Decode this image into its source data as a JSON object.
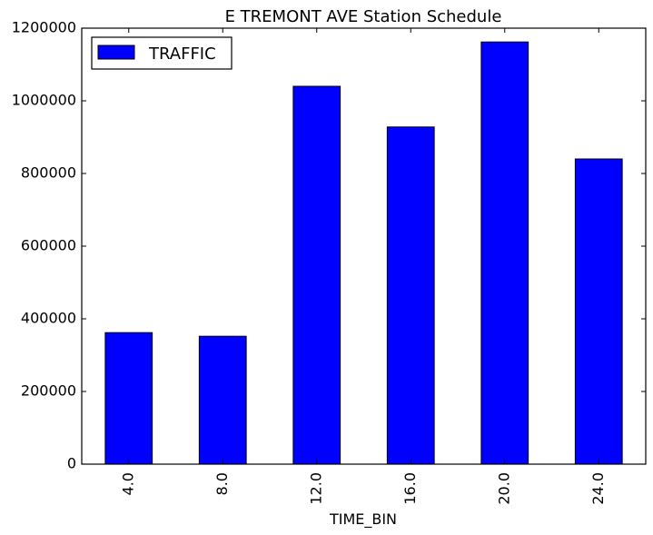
{
  "chart_data": {
    "type": "bar",
    "title": "E TREMONT AVE Station Schedule",
    "xlabel": "TIME_BIN",
    "ylabel": "",
    "categories": [
      "4.0",
      "8.0",
      "12.0",
      "16.0",
      "20.0",
      "24.0"
    ],
    "series": [
      {
        "name": "TRAFFIC",
        "values": [
          362000,
          352000,
          1040000,
          928000,
          1162000,
          840000
        ],
        "color": "#0000ff"
      }
    ],
    "ylim": [
      0,
      1200000
    ],
    "yticks": [
      "0",
      "200000",
      "400000",
      "600000",
      "800000",
      "1000000",
      "1200000"
    ],
    "grid": false,
    "legend_position": "top-left",
    "bar_edge_color": "#000000"
  }
}
